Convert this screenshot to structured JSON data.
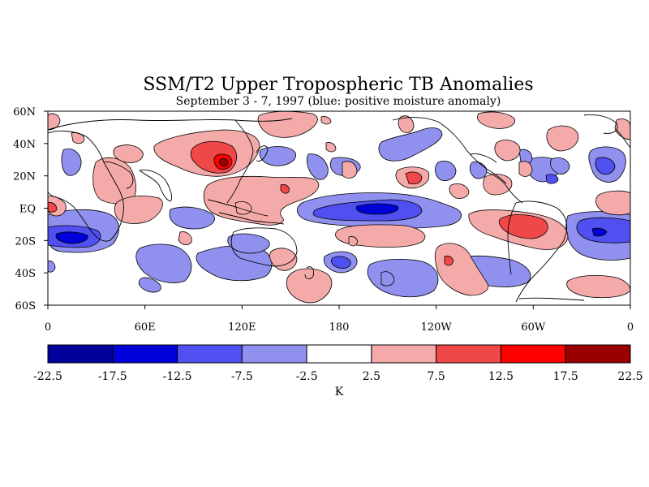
{
  "title": "SSM/T2 Upper Tropospheric TB Anomalies",
  "subtitle": "September 3 - 7, 1997 (blue: positive moisture anomaly)",
  "map": {
    "lon_ticks": [
      "0",
      "60E",
      "120E",
      "180",
      "120W",
      "60W",
      "0"
    ],
    "lat_ticks": [
      "60N",
      "40N",
      "20N",
      "EQ",
      "20S",
      "40S",
      "60S"
    ]
  },
  "colorbar": {
    "unit": "K",
    "labels": [
      "-22.5",
      "-17.5",
      "-12.5",
      "-7.5",
      "-2.5",
      "2.5",
      "7.5",
      "12.5",
      "17.5",
      "22.5"
    ],
    "colors": [
      "#00009a",
      "#0000d8",
      "#5050f0",
      "#9090ee",
      "#ffffff",
      "#f5aaaa",
      "#f04848",
      "#ff0000",
      "#9a0000"
    ]
  },
  "chart_data": {
    "type": "heatmap",
    "title": "SSM/T2 Upper Tropospheric TB Anomalies",
    "subtitle": "September 3 - 7, 1997 (blue: positive moisture anomaly)",
    "xlabel": "",
    "ylabel": "",
    "xlim": [
      0,
      360
    ],
    "ylim": [
      -60,
      60
    ],
    "contour_levels": [
      -22.5,
      -17.5,
      -12.5,
      -7.5,
      -2.5,
      2.5,
      7.5,
      12.5,
      17.5,
      22.5
    ],
    "colorbar_unit": "K",
    "anomaly_blobs": [
      {
        "lon": 15,
        "lat": -20,
        "value": -14
      },
      {
        "lon": 330,
        "lat": -20,
        "value": -12
      },
      {
        "lon": 210,
        "lat": 0,
        "value": -16
      },
      {
        "lon": 110,
        "lat": 28,
        "value": 15
      },
      {
        "lon": 300,
        "lat": -12,
        "value": 12
      },
      {
        "lon": 150,
        "lat": 10,
        "value": 5
      },
      {
        "lon": 265,
        "lat": -25,
        "value": 5
      }
    ]
  }
}
